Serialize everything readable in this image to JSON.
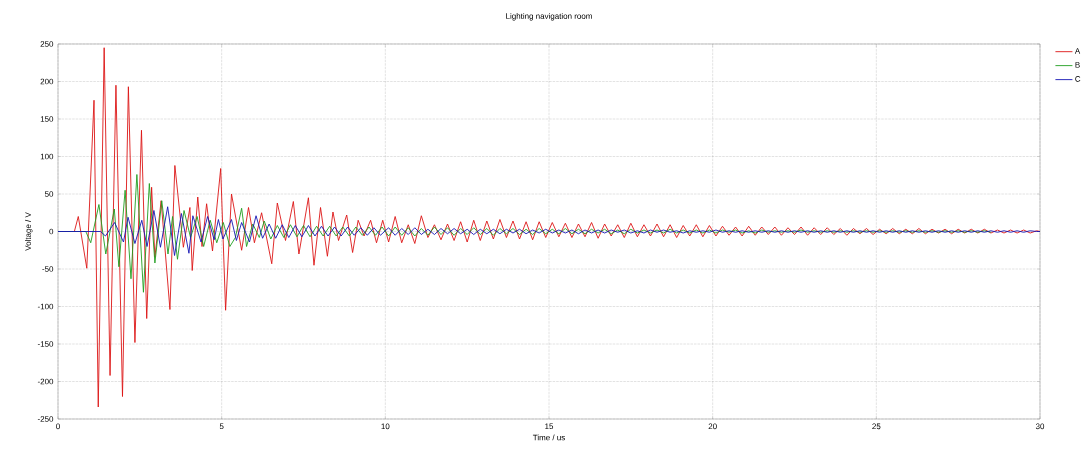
{
  "chart_data": {
    "type": "line",
    "title": "Lighting navigation room",
    "xlabel": "Time / us",
    "ylabel": "Voltage / V",
    "xlim": [
      0,
      30
    ],
    "xticks": [
      0,
      5,
      10,
      15,
      20,
      25,
      30
    ],
    "ylim": [
      -250,
      250
    ],
    "yticks": [
      -250,
      -200,
      -150,
      -100,
      -50,
      0,
      50,
      100,
      150,
      200,
      250
    ],
    "grid": true,
    "legend": "top right",
    "marker": "none",
    "line_style": "solid",
    "series": [
      {
        "name": "A",
        "color": "#dc1414",
        "x": [
          0,
          0.5,
          0.62,
          0.88,
          1.1,
          1.23,
          1.41,
          1.59,
          1.77,
          1.97,
          2.15,
          2.35,
          2.55,
          2.71,
          2.86,
          2.96,
          3.15,
          3.42,
          3.57,
          3.83,
          4.03,
          4.1,
          4.27,
          4.4,
          4.54,
          4.72,
          4.97,
          5.12,
          5.3,
          5.61,
          5.82,
          6.0,
          6.22,
          6.53,
          6.7,
          6.95,
          7.19,
          7.36,
          7.65,
          7.82,
          8.02,
          8.23,
          8.4,
          8.57,
          8.82,
          9.0,
          9.17,
          9.35,
          9.55,
          9.73,
          9.92,
          10.1,
          10.3,
          10.5,
          10.7,
          10.9,
          11.1,
          11.3,
          11.5,
          11.7,
          11.9,
          12.1,
          12.3,
          12.5,
          12.7,
          12.9,
          13.1,
          13.3,
          13.5,
          13.7,
          13.9,
          14.1,
          14.3,
          14.5,
          14.7,
          14.9,
          15.1,
          15.3,
          15.5,
          15.7,
          15.9,
          16.1,
          16.3,
          16.5,
          16.7,
          16.9,
          17.1,
          17.3,
          17.5,
          17.7,
          17.9,
          18.1,
          18.3,
          18.5,
          18.7,
          18.9,
          19.1,
          19.3,
          19.5,
          19.7,
          19.9,
          20.1,
          20.3,
          20.5,
          20.7,
          20.9,
          21.1,
          21.3,
          21.5,
          21.7,
          21.9,
          22.1,
          22.3,
          22.5,
          22.7,
          22.9,
          23.1,
          23.3,
          23.5,
          23.7,
          23.9,
          24.1,
          24.3,
          24.5,
          24.7,
          24.9,
          25.1,
          25.3,
          25.5,
          25.7,
          25.9,
          26.1,
          26.3,
          26.5,
          26.7,
          26.9,
          27.1,
          27.3,
          27.5,
          27.7,
          27.9,
          28.1,
          28.3,
          28.5,
          28.7,
          28.9,
          29.1,
          29.3,
          29.5,
          29.7,
          29.9,
          30
        ],
        "values": [
          0,
          0,
          20,
          -49,
          175,
          -234,
          245,
          -192,
          195,
          -220,
          193,
          -148,
          135,
          -116,
          59,
          -34,
          41,
          -104,
          88,
          -21,
          32,
          -52,
          46,
          -20,
          37,
          -26,
          84,
          -105,
          50,
          -25,
          32,
          -15,
          25,
          -43,
          38,
          -12,
          40,
          -30,
          45,
          -45,
          32,
          -33,
          26,
          -12,
          22,
          -28,
          15,
          -6,
          15,
          -15,
          15,
          -14,
          20,
          -15,
          9,
          -16,
          21,
          -8,
          9,
          -11,
          10,
          -12,
          13,
          -14,
          15,
          -12,
          14,
          -10,
          16,
          -8,
          14,
          -10,
          13,
          -11,
          13,
          -8,
          12,
          -7,
          11,
          -8,
          10,
          -7,
          12,
          -9,
          10,
          -6,
          9,
          -8,
          11,
          -7,
          9,
          -6,
          10,
          -7,
          9,
          -8,
          8,
          -6,
          9,
          -7,
          8,
          -6,
          7,
          -5,
          6,
          -6,
          7,
          -5,
          6,
          -4,
          6,
          -5,
          5,
          -4,
          6,
          -5,
          5,
          -4,
          5,
          -4,
          4,
          -5,
          4,
          -3,
          4,
          -4,
          3,
          -3,
          4,
          -3,
          3,
          -3,
          4,
          -3,
          3,
          -2,
          3,
          -3,
          3,
          -2,
          3,
          -2,
          3,
          -2,
          2,
          -2,
          2,
          -2,
          2,
          -2,
          1,
          0
        ]
      },
      {
        "name": "B",
        "color": "#1e9e1e",
        "x": [
          0,
          0.85,
          1.0,
          1.25,
          1.46,
          1.72,
          1.86,
          2.05,
          2.23,
          2.41,
          2.61,
          2.79,
          2.96,
          3.17,
          3.36,
          3.5,
          3.65,
          3.85,
          4.05,
          4.25,
          4.45,
          4.65,
          4.85,
          5.05,
          5.25,
          5.42,
          5.61,
          5.76,
          5.95,
          6.15,
          6.3,
          6.5,
          6.7,
          6.9,
          7.1,
          7.3,
          7.5,
          7.7,
          7.9,
          8.1,
          8.3,
          8.5,
          8.7,
          8.9,
          9.1,
          9.3,
          9.5,
          9.7,
          9.9,
          10.1,
          10.3,
          10.5,
          10.7,
          10.9,
          11.1,
          11.3,
          11.5,
          11.7,
          11.9,
          12.1,
          12.3,
          12.5,
          12.7,
          12.9,
          13.1,
          13.3,
          13.5,
          13.7,
          13.9,
          14.1,
          14.3,
          14.5,
          14.7,
          14.9,
          15.1,
          15.3,
          15.5,
          15.7,
          15.9,
          16.1,
          16.3,
          16.5,
          16.7,
          16.9,
          17.1,
          17.3,
          17.5,
          17.7,
          17.9,
          18.1,
          18.3,
          18.5,
          18.7,
          18.9,
          19.1,
          19.3,
          19.5,
          19.7,
          19.9,
          20.1,
          20.3,
          20.5,
          20.7,
          20.9,
          21.1,
          21.3,
          21.5,
          21.7,
          21.9,
          22.1,
          22.3,
          22.5,
          22.7,
          22.9,
          23.1,
          23.3,
          23.5,
          23.7,
          23.9,
          24.1,
          24.3,
          24.5,
          24.7,
          24.9,
          25.1,
          25.3,
          25.5,
          25.7,
          25.9,
          26.1,
          26.3,
          26.5,
          26.7,
          26.9,
          27.1,
          27.3,
          27.5,
          27.7,
          27.9,
          28.1,
          28.3,
          28.5
        ],
        "values": [
          0,
          0,
          -15,
          36,
          -30,
          30,
          -47,
          55,
          -63,
          76,
          -81,
          64,
          -42,
          41,
          -30,
          20,
          -37,
          28,
          -8,
          20,
          -20,
          15,
          -15,
          12,
          -20,
          -8,
          31,
          -20,
          10,
          -8,
          14,
          -10,
          8,
          -8,
          9,
          -7,
          8,
          -7,
          7,
          -6,
          7,
          -6,
          6,
          -6,
          6,
          -5,
          6,
          -5,
          6,
          -6,
          6,
          -5,
          5,
          -6,
          4,
          -5,
          6,
          -4,
          5,
          -5,
          4,
          -4,
          5,
          -4,
          4,
          -5,
          4,
          -3,
          4,
          -4,
          3,
          -4,
          4,
          -3,
          3,
          -3,
          4,
          -3,
          3,
          -3,
          3,
          -2,
          3,
          -3,
          2,
          -3,
          3,
          -2,
          2,
          -2,
          2,
          -2,
          3,
          -2,
          2,
          -2,
          2,
          -2,
          2,
          -2,
          2,
          -1,
          2,
          -2,
          1,
          -2,
          2,
          -1,
          1,
          -1,
          1,
          -1,
          2,
          -1,
          1,
          -1,
          1,
          -1,
          1,
          -1,
          1,
          -1,
          1,
          -1,
          1,
          -1,
          1,
          -1,
          1,
          -1,
          1,
          -1,
          1,
          -1,
          1,
          -1,
          1,
          -1,
          1,
          -1,
          1,
          -1
        ]
      },
      {
        "name": "C",
        "color": "#1414b4",
        "x": [
          0,
          1.3,
          1.45,
          1.73,
          2.0,
          2.14,
          2.35,
          2.56,
          2.72,
          2.93,
          3.13,
          3.35,
          3.56,
          3.77,
          4.0,
          4.12,
          4.37,
          4.57,
          4.77,
          4.9,
          5.04,
          5.3,
          5.45,
          5.61,
          5.85,
          6.05,
          6.25,
          6.45,
          6.65,
          6.85,
          7.05,
          7.25,
          7.45,
          7.65,
          7.85,
          8.05,
          8.25,
          8.45,
          8.65,
          8.85,
          9.05,
          9.25,
          9.45,
          9.65,
          9.85,
          10.1,
          10.3,
          10.5,
          10.7,
          10.9,
          11.1,
          11.3,
          11.5,
          11.7,
          11.9,
          12.1,
          12.3,
          12.5,
          12.7,
          12.9,
          13.1,
          13.3,
          13.5,
          13.7,
          13.9,
          14.1,
          14.3,
          14.5,
          14.7,
          14.9,
          15.1,
          15.3,
          15.5,
          15.7,
          15.9,
          16.1,
          16.3,
          16.5,
          16.7,
          16.9,
          17.1,
          17.3,
          17.5,
          17.7,
          17.9,
          18.1,
          18.3,
          18.5,
          18.7,
          18.9,
          19.1,
          19.3,
          19.5,
          19.7,
          19.9,
          20.1,
          20.3,
          20.5,
          20.7,
          20.9,
          21.1,
          21.3,
          21.5,
          21.7,
          21.9,
          22.1,
          22.3,
          22.5,
          22.7,
          22.9,
          23.1,
          23.3,
          23.5,
          23.7,
          23.9,
          24.1,
          24.3,
          24.5,
          24.7,
          24.9,
          25.1,
          25.3,
          25.5,
          25.7,
          25.9,
          26.1,
          26.3,
          26.5,
          26.7,
          26.9,
          27.1,
          27.3,
          27.5,
          27.7,
          27.9,
          28.1,
          28.3,
          28.5,
          28.7,
          28.9,
          29.1,
          29.3,
          29.5,
          29.7,
          29.9,
          30
        ],
        "values": [
          0,
          0,
          -6,
          12,
          -14,
          19,
          -16,
          15,
          -20,
          28,
          -21,
          33,
          -32,
          24,
          -29,
          21,
          -14,
          20,
          -11,
          16,
          -10,
          16,
          -12,
          12,
          -14,
          21,
          -9,
          10,
          -9,
          9,
          -8,
          8,
          -7,
          8,
          -6,
          7,
          -6,
          6,
          -6,
          6,
          -5,
          5,
          -5,
          5,
          -5,
          5,
          -5,
          4,
          -4,
          5,
          -4,
          3,
          -4,
          4,
          -3,
          4,
          -3,
          3,
          -4,
          3,
          -3,
          3,
          -3,
          3,
          -2,
          3,
          -3,
          2,
          -2,
          3,
          -2,
          2,
          -2,
          2,
          -3,
          2,
          -2,
          2,
          -2,
          2,
          -1,
          2,
          -2,
          1,
          -2,
          2,
          -1,
          2,
          -1,
          1,
          -2,
          1,
          -1,
          1,
          -1,
          2,
          -1,
          1,
          -1,
          1,
          -1,
          1,
          -1,
          1,
          -1,
          1,
          -1,
          1,
          -1,
          1,
          -1,
          1,
          -1,
          1,
          -1,
          1,
          -1,
          1,
          -1,
          1,
          -1,
          1,
          -1,
          1,
          -1,
          1,
          -1,
          1,
          -1,
          1,
          -1,
          1,
          -1,
          1,
          -1,
          1,
          -1,
          1,
          -1,
          1,
          -1,
          1,
          -1,
          1,
          0,
          0
        ]
      }
    ]
  }
}
